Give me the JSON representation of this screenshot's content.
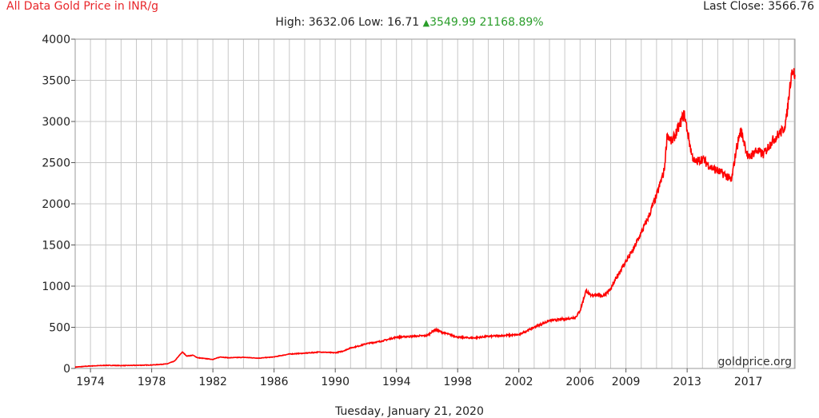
{
  "header": {
    "title": "All Data Gold Price in INR/g",
    "last_close_label": "Last Close:",
    "last_close_value": "3566.76",
    "high_label": "High:",
    "high_value": "3632.06",
    "low_label": "Low:",
    "low_value": "16.71",
    "change_arrow": "▲",
    "change_value": "3549.99",
    "change_percent": "21168.89%"
  },
  "footer": {
    "date": "Tuesday, January 21, 2020"
  },
  "source": "goldprice.org",
  "colors": {
    "line": "#ff0000",
    "title": "#e8262a",
    "up": "#2a9d2a",
    "grid": "#c8c8c8"
  },
  "chart_data": {
    "type": "line",
    "title": "All Data Gold Price in INR/g",
    "xlabel": "",
    "ylabel": "",
    "xlim": [
      1973.0,
      2020.05
    ],
    "ylim": [
      0,
      4000
    ],
    "grid": true,
    "x_tick_labels": [
      "1974",
      "1978",
      "1982",
      "1986",
      "1990",
      "1994",
      "1998",
      "2002",
      "2006",
      "2009",
      "2013",
      "2017"
    ],
    "x_tick_values": [
      1974,
      1978,
      1982,
      1986,
      1990,
      1994,
      1998,
      2002,
      2006,
      2009,
      2013,
      2017
    ],
    "y_tick_values": [
      0,
      500,
      1000,
      1500,
      2000,
      2500,
      3000,
      3500,
      4000
    ],
    "series": [
      {
        "x": [
          1973.0,
          1974.0,
          1975.0,
          1976.0,
          1977.0,
          1978.0,
          1979.0,
          1979.5,
          1980.0,
          1980.3,
          1980.7,
          1981.0,
          1981.5,
          1982.0,
          1982.5,
          1983.0,
          1984.0,
          1985.0,
          1986.0,
          1987.0,
          1988.0,
          1989.0,
          1990.0,
          1990.5,
          1991.0,
          1991.5,
          1992.0,
          1993.0,
          1994.0,
          1995.0,
          1996.0,
          1996.5,
          1997.0,
          1998.0,
          1999.0,
          2000.0,
          2001.0,
          2002.0,
          2003.0,
          2004.0,
          2005.0,
          2005.7,
          2006.0,
          2006.4,
          2006.7,
          2007.0,
          2007.5,
          2008.0,
          2008.5,
          2009.0,
          2009.5,
          2010.0,
          2010.5,
          2011.0,
          2011.5,
          2011.7,
          2012.0,
          2012.5,
          2012.8,
          2013.0,
          2013.3,
          2013.5,
          2014.0,
          2014.5,
          2015.0,
          2015.5,
          2015.9,
          2016.2,
          2016.5,
          2016.8,
          2017.0,
          2017.5,
          2018.0,
          2018.5,
          2019.0,
          2019.3,
          2019.5,
          2019.7,
          2019.85,
          2020.05
        ],
        "y": [
          16.71,
          30,
          38,
          35,
          38,
          42,
          55,
          90,
          200,
          150,
          160,
          130,
          120,
          110,
          140,
          130,
          135,
          125,
          140,
          175,
          185,
          200,
          190,
          210,
          250,
          270,
          300,
          330,
          380,
          390,
          400,
          470,
          440,
          380,
          370,
          390,
          400,
          410,
          500,
          580,
          600,
          620,
          700,
          950,
          880,
          900,
          880,
          960,
          1150,
          1300,
          1450,
          1650,
          1850,
          2100,
          2400,
          2850,
          2750,
          2950,
          3100,
          2900,
          2600,
          2500,
          2550,
          2450,
          2400,
          2350,
          2280,
          2650,
          2900,
          2700,
          2550,
          2650,
          2600,
          2750,
          2850,
          2900,
          3050,
          3400,
          3632.06,
          3566.76
        ]
      }
    ]
  }
}
